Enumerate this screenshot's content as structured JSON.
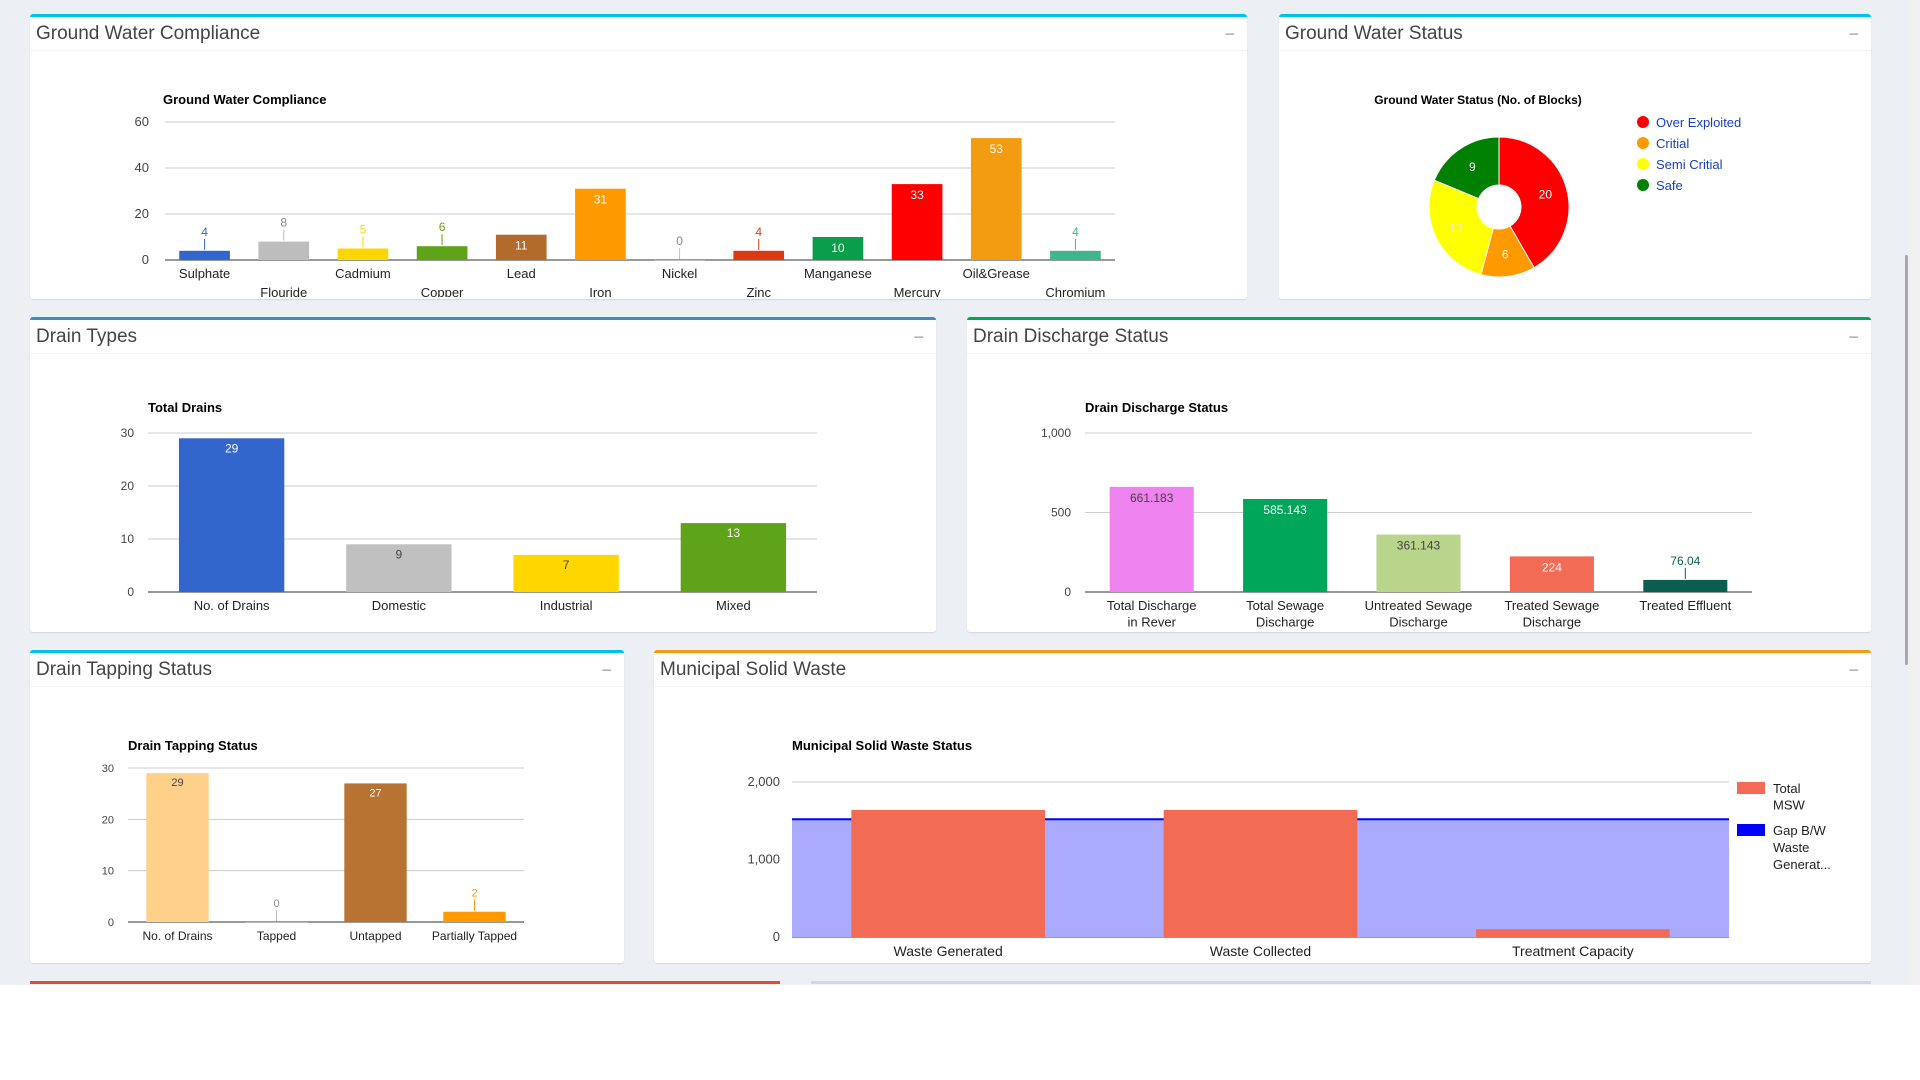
{
  "panels": {
    "gw_compliance": {
      "title": "Ground Water Compliance",
      "accent": "#00c0ef"
    },
    "gw_status": {
      "title": "Ground Water Status",
      "accent": "#00c0ef"
    },
    "drain_types": {
      "title": "Drain Types",
      "accent": "#3c8dbc"
    },
    "drain_discharge": {
      "title": "Drain Discharge Status",
      "accent": "#00a65a"
    },
    "drain_tapping": {
      "title": "Drain Tapping Status",
      "accent": "#00c0ef"
    },
    "msw": {
      "title": "Municipal Solid Waste",
      "accent": "#f39c12"
    }
  },
  "collapse_icon": "minus-icon",
  "collapse_glyph": "−",
  "chart_data": [
    {
      "id": "gw_compliance",
      "type": "bar",
      "title": "Ground Water Compliance",
      "categories": [
        "Sulphate",
        "Flouride",
        "Cadmium",
        "Copper",
        "Lead",
        "Iron",
        "Nickel",
        "Zinc",
        "Manganese",
        "Mercury",
        "Oil&Grease",
        "Chromium"
      ],
      "values": [
        4,
        8,
        5,
        6,
        11,
        31,
        0,
        4,
        10,
        33,
        53,
        4
      ],
      "colors": [
        "#3366cc",
        "#bdbdbd",
        "#ffd700",
        "#5fa319",
        "#b36b2b",
        "#ff9900",
        "#c0c0c0",
        "#dc3912",
        "#0a9e4b",
        "#ff0000",
        "#f39c12",
        "#3fb68f"
      ],
      "ylim": [
        0,
        60
      ],
      "yticks": [
        "0",
        "20",
        "40",
        "60"
      ],
      "grid": true
    },
    {
      "id": "gw_status",
      "type": "pie",
      "title": "Ground Water Status (No. of Blocks)",
      "labels": [
        "Over Exploited",
        "Critial",
        "Semi Critial",
        "Safe"
      ],
      "values": [
        20,
        6,
        13,
        9
      ],
      "colors": [
        "#ff0000",
        "#ff9900",
        "#ffff00",
        "#008000"
      ],
      "legend": "right",
      "donut": true
    },
    {
      "id": "drain_types",
      "type": "bar",
      "title": "Total Drains",
      "categories": [
        "No. of Drains",
        "Domestic",
        "Industrial",
        "Mixed"
      ],
      "values": [
        29,
        9,
        7,
        13
      ],
      "colors": [
        "#3366cc",
        "#c0c0c0",
        "#ffd700",
        "#5fa319"
      ],
      "ylim": [
        0,
        30
      ],
      "yticks": [
        "0",
        "10",
        "20",
        "30"
      ],
      "grid": true
    },
    {
      "id": "drain_discharge",
      "type": "bar",
      "title": "Drain Discharge Status",
      "categories": [
        "Total Discharge in Rever",
        "Total Sewage Discharge",
        "Untreated Sewage Discharge",
        "Treated Sewage Discharge",
        "Treated Effluent"
      ],
      "values": [
        661.183,
        585.143,
        361.143,
        224,
        76.04
      ],
      "value_labels": [
        "661.183",
        "585.143",
        "361.143",
        "224",
        "76.04"
      ],
      "colors": [
        "#ee82ee",
        "#00a65a",
        "#b9d48b",
        "#f16b55",
        "#0b5d4f"
      ],
      "ylim": [
        0,
        1000
      ],
      "yticks": [
        "0",
        "500",
        "1,000"
      ],
      "grid": true
    },
    {
      "id": "drain_tapping",
      "type": "bar",
      "title": "Drain Tapping Status",
      "categories": [
        "No. of Drains",
        "Tapped",
        "Untapped",
        "Partially Tapped"
      ],
      "values": [
        29,
        0,
        27,
        2
      ],
      "colors": [
        "#ffd08a",
        "#bbbbbb",
        "#b87333",
        "#ff9900"
      ],
      "ylim": [
        0,
        30
      ],
      "yticks": [
        "0",
        "10",
        "20",
        "30"
      ],
      "grid": true
    },
    {
      "id": "msw",
      "type": "bar",
      "title": "Municipal Solid Waste Status",
      "categories": [
        "Waste Generated",
        "Waste Collected",
        "Treatment Capacity"
      ],
      "series": [
        {
          "name": "Total MSW",
          "type": "bar",
          "values": [
            1640,
            1640,
            100
          ],
          "color": "#f26b55"
        },
        {
          "name": "Gap B/W Waste Generat...",
          "type": "area",
          "values": [
            1520,
            1520,
            1520
          ],
          "color": "#0000ff",
          "fill": "#aaaaff"
        }
      ],
      "ylim": [
        0,
        2000
      ],
      "yticks": [
        "0",
        "1,000",
        "2,000"
      ],
      "legend": "right",
      "grid": true
    }
  ]
}
